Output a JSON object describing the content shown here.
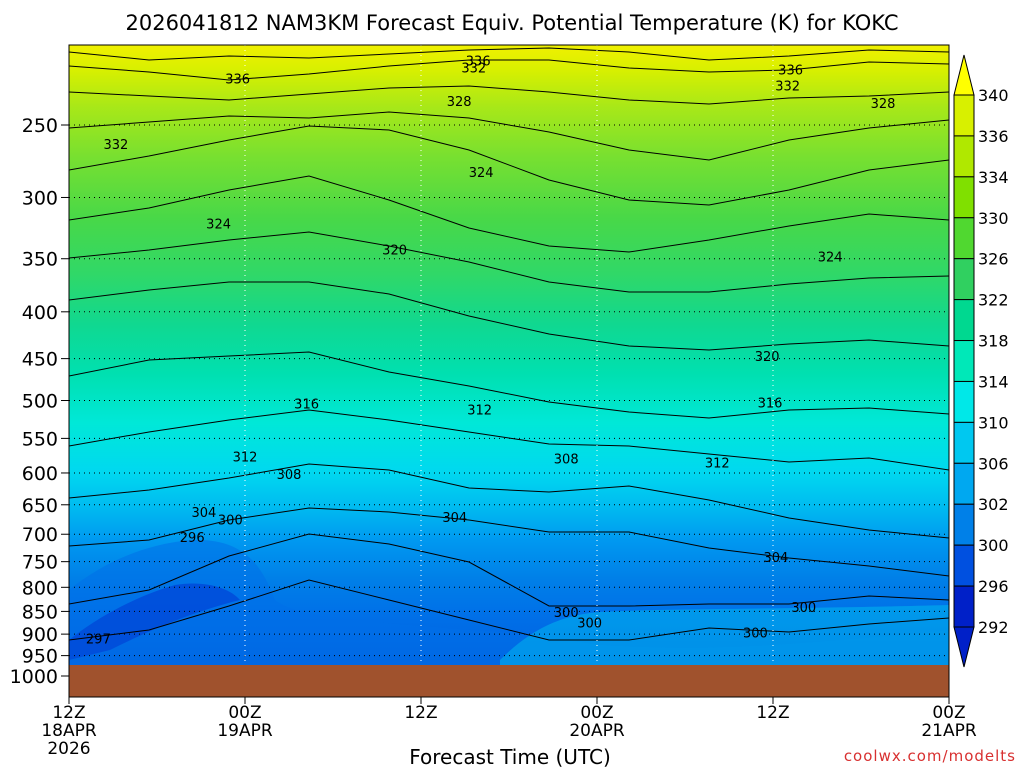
{
  "chart_data": {
    "type": "contour",
    "title": "2026041812 NAM3KM Forecast Equiv. Potential Temperature (K) for KOKC",
    "xlabel": "Forecast Time (UTC)",
    "ylabel": "",
    "units": "K",
    "y_axis": {
      "scale": "log-pressure",
      "inverted": true,
      "ticks": [
        "250",
        "300",
        "350",
        "400",
        "450",
        "500",
        "550",
        "600",
        "650",
        "700",
        "750",
        "800",
        "850",
        "900",
        "950",
        "1000"
      ],
      "tick_values": [
        250,
        300,
        350,
        400,
        450,
        500,
        550,
        600,
        650,
        700,
        750,
        800,
        850,
        900,
        950,
        1000
      ]
    },
    "x_axis": {
      "range_hours": [
        0,
        60
      ],
      "ticks": [
        {
          "hour": 0,
          "line1": "12Z",
          "line2": "18APR",
          "line3": "2026"
        },
        {
          "hour": 12,
          "line1": "00Z",
          "line2": "19APR",
          "line3": ""
        },
        {
          "hour": 24,
          "line1": "12Z",
          "line2": "",
          "line3": ""
        },
        {
          "hour": 36,
          "line1": "00Z",
          "line2": "20APR",
          "line3": ""
        },
        {
          "hour": 48,
          "line1": "12Z",
          "line2": "",
          "line3": ""
        },
        {
          "hour": 60,
          "line1": "00Z",
          "line2": "21APR",
          "line3": ""
        }
      ]
    },
    "grid": true,
    "colorbar": {
      "position": "right",
      "levels": [
        "340",
        "336",
        "334",
        "330",
        "326",
        "322",
        "318",
        "314",
        "310",
        "306",
        "302",
        "300",
        "296",
        "292"
      ],
      "colors": [
        "#ffff00",
        "#d8f000",
        "#b0e800",
        "#80e000",
        "#50d830",
        "#30d060",
        "#00d890",
        "#00e8b8",
        "#00e8e8",
        "#00c8f0",
        "#00a8f0",
        "#0080e8",
        "#0050e0",
        "#0020c8"
      ]
    },
    "contour_labels": [
      {
        "value": "336",
        "hour": 27.9,
        "p": 213
      },
      {
        "value": "332",
        "hour": 27.6,
        "p": 217
      },
      {
        "value": "336",
        "hour": 11.5,
        "p": 223
      },
      {
        "value": "336",
        "hour": 49.2,
        "p": 218
      },
      {
        "value": "332",
        "hour": 49.0,
        "p": 227
      },
      {
        "value": "328",
        "hour": 26.6,
        "p": 236
      },
      {
        "value": "328",
        "hour": 55.5,
        "p": 237
      },
      {
        "value": "332",
        "hour": 3.2,
        "p": 263
      },
      {
        "value": "324",
        "hour": 28.1,
        "p": 282
      },
      {
        "value": "324",
        "hour": 10.2,
        "p": 321
      },
      {
        "value": "320",
        "hour": 22.2,
        "p": 343
      },
      {
        "value": "324",
        "hour": 51.9,
        "p": 349
      },
      {
        "value": "320",
        "hour": 47.6,
        "p": 448
      },
      {
        "value": "316",
        "hour": 16.2,
        "p": 505
      },
      {
        "value": "312",
        "hour": 28.0,
        "p": 513
      },
      {
        "value": "316",
        "hour": 47.8,
        "p": 504
      },
      {
        "value": "312",
        "hour": 12.0,
        "p": 577
      },
      {
        "value": "308",
        "hour": 33.9,
        "p": 580
      },
      {
        "value": "312",
        "hour": 44.2,
        "p": 586
      },
      {
        "value": "308",
        "hour": 15.0,
        "p": 603
      },
      {
        "value": "304",
        "hour": 9.2,
        "p": 664
      },
      {
        "value": "300",
        "hour": 11.0,
        "p": 676
      },
      {
        "value": "304",
        "hour": 26.3,
        "p": 672
      },
      {
        "value": "296",
        "hour": 8.4,
        "p": 707
      },
      {
        "value": "304",
        "hour": 48.2,
        "p": 743
      },
      {
        "value": "300",
        "hour": 33.9,
        "p": 853
      },
      {
        "value": "300",
        "hour": 35.5,
        "p": 876
      },
      {
        "value": "300",
        "hour": 50.1,
        "p": 843
      },
      {
        "value": "300",
        "hour": 46.8,
        "p": 899
      },
      {
        "value": "297",
        "hour": 2.0,
        "p": 912
      }
    ]
  },
  "watermark": "coolwx.com/modelts"
}
